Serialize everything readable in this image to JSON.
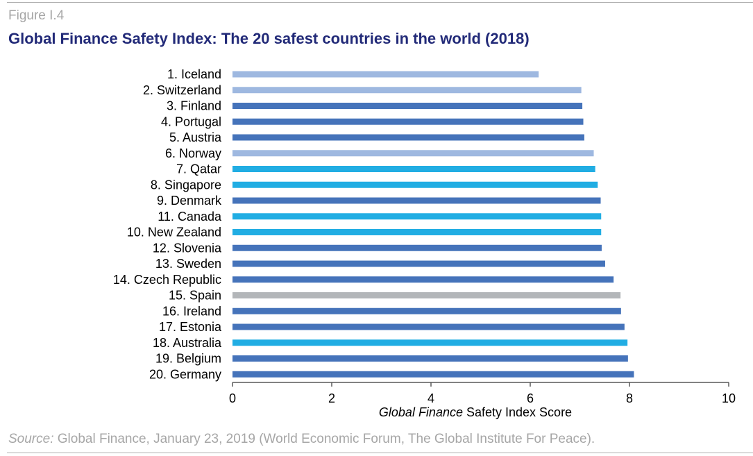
{
  "figure_label": "Figure I.4",
  "title": "Global Finance Safety Index: The 20 safest countries in the world (2018)",
  "source_prefix": "Source:",
  "source_text": " Global Finance, January 23, 2019 (World Economic Forum, The Global Institute For Peace).",
  "chart_data": {
    "type": "bar",
    "orientation": "horizontal",
    "categories": [
      "1. Iceland",
      "2. Switzerland",
      "3. Finland",
      "4. Portugal",
      "5. Austria",
      "6. Norway",
      "7. Qatar",
      "8. Singapore",
      "9. Denmark",
      "11. Canada",
      "10.  New Zealand",
      "12. Slovenia",
      "13. Sweden",
      "14. Czech Republic",
      "15. Spain",
      "16. Ireland",
      "17. Estonia",
      "18. Australia",
      "19. Belgium",
      "20. Germany"
    ],
    "values": [
      6.17,
      7.03,
      7.05,
      7.07,
      7.09,
      7.28,
      7.31,
      7.36,
      7.42,
      7.43,
      7.43,
      7.44,
      7.51,
      7.68,
      7.82,
      7.83,
      7.9,
      7.96,
      7.97,
      8.09
    ],
    "bar_colors": [
      "#9eb8e0",
      "#9eb8e0",
      "#4573ba",
      "#4573ba",
      "#4573ba",
      "#9eb8e0",
      "#21ade3",
      "#21ade3",
      "#4573ba",
      "#21ade3",
      "#21ade3",
      "#4573ba",
      "#4573ba",
      "#4573ba",
      "#b3b6b9",
      "#4573ba",
      "#4573ba",
      "#21ade3",
      "#4573ba",
      "#4573ba"
    ],
    "xlim": [
      0,
      10
    ],
    "xticks": [
      "0",
      "2",
      "4",
      "6",
      "8",
      "10"
    ],
    "xlabel_italic": "Global Finance",
    "xlabel_rest": " Safety Index Score",
    "grid": false,
    "legend": "none"
  }
}
